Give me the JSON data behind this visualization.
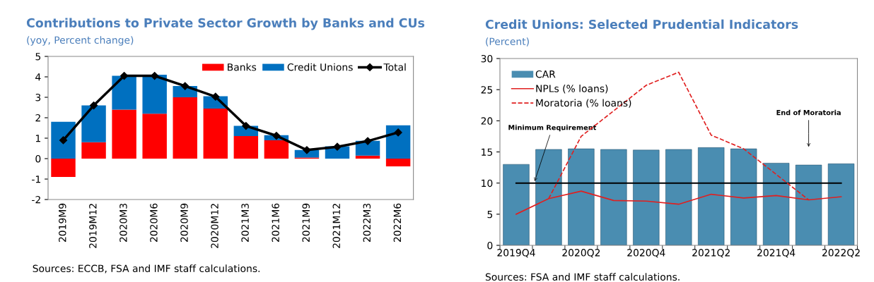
{
  "chart_data": [
    {
      "type": "bar",
      "title": "Contributions to Private Sector Growth by Banks and CUs",
      "subtitle": "(yoy, Percent change)",
      "categories": [
        "2019M9",
        "2019M12",
        "2020M3",
        "2020M6",
        "2020M9",
        "2020M12",
        "2021M3",
        "2021M6",
        "2021M9",
        "2021M12",
        "2022M3",
        "2022M6"
      ],
      "stacked": true,
      "series": [
        {
          "name": "Banks",
          "color": "#ff0000",
          "values": [
            -0.9,
            0.8,
            2.4,
            2.2,
            3.0,
            2.45,
            1.1,
            0.9,
            0.05,
            0.0,
            0.15,
            -0.38
          ]
        },
        {
          "name": "Credit Unions",
          "color": "#0070c0",
          "values": [
            1.8,
            1.8,
            1.65,
            1.9,
            0.55,
            0.6,
            0.5,
            0.25,
            0.37,
            0.6,
            0.72,
            1.63
          ]
        },
        {
          "name": "Total",
          "type": "line",
          "color": "#000000",
          "marker": "diamond",
          "values": [
            0.9,
            2.6,
            4.05,
            4.05,
            3.55,
            3.03,
            1.6,
            1.12,
            0.42,
            0.58,
            0.86,
            1.28
          ]
        }
      ],
      "ylim": [
        -2,
        5
      ],
      "yticks": [
        -2,
        -1,
        0,
        1,
        2,
        3,
        4,
        5
      ],
      "grid": false,
      "legend": "top right",
      "annotations": [
        "Sources: ECCB, FSA and IMF staff calculations."
      ]
    },
    {
      "type": "bar",
      "title": "Credit Unions: Selected Prudential Indicators",
      "subtitle": "(Percent)",
      "categories": [
        "2019Q4",
        null,
        "2020Q2",
        null,
        "2020Q4",
        null,
        "2021Q2",
        null,
        "2021Q4",
        null,
        "2022Q2"
      ],
      "series": [
        {
          "name": "CAR",
          "color": "#4a8db1",
          "values": [
            13.0,
            15.4,
            15.5,
            15.4,
            15.3,
            15.4,
            15.7,
            15.5,
            13.2,
            12.9,
            13.1
          ]
        },
        {
          "name": "NPLs (% loans)",
          "type": "line",
          "color": "#e02020",
          "line_style": "solid",
          "values": [
            5.0,
            7.5,
            8.7,
            7.2,
            7.1,
            6.6,
            8.2,
            7.6,
            8.0,
            7.3,
            7.8
          ]
        },
        {
          "name": "Moratoria (% loans)",
          "type": "line",
          "color": "#e02020",
          "line_style": "dashed",
          "values": [
            null,
            7.5,
            17.5,
            21.6,
            25.7,
            27.8,
            17.7,
            15.5,
            11.4,
            7.3,
            null
          ]
        }
      ],
      "ref_lines": [
        {
          "axis": "y",
          "value": 10,
          "color": "#000000",
          "label": "Minimum Requirement"
        }
      ],
      "ylim": [
        0,
        30
      ],
      "yticks": [
        0,
        5,
        10,
        15,
        20,
        25,
        30
      ],
      "grid": false,
      "legend": "top left",
      "annotations": [
        "End of Moratoria",
        "Sources: FSA and IMF staff calculations."
      ]
    }
  ]
}
